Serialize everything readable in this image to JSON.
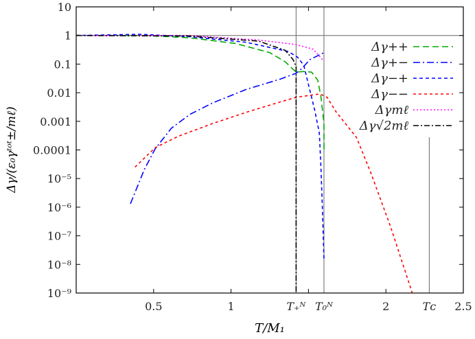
{
  "chart_data": {
    "type": "line",
    "xlabel": "T/M₁",
    "ylabel": "Δγ/(ε₀γᵗᵒᵗ±/mℓ)",
    "xlim": [
      0,
      2.5
    ],
    "ylim": [
      1e-09,
      10
    ],
    "yscale": "log",
    "grid": false,
    "legend_position": "top-right",
    "x_ticks": [
      {
        "value": 0.5,
        "label": "0.5"
      },
      {
        "value": 1,
        "label": "1"
      },
      {
        "value": 1.42,
        "label": "T₊ᴺ"
      },
      {
        "value": 1.6,
        "label": "T₀ᴺ"
      },
      {
        "value": 2,
        "label": "2"
      },
      {
        "value": 2.28,
        "label": "Tᴄ"
      },
      {
        "value": 2.5,
        "label": "2.5"
      }
    ],
    "y_ticks": [
      {
        "value": 10,
        "label": "10"
      },
      {
        "value": 1,
        "label": "1"
      },
      {
        "value": 0.1,
        "label": "0.1"
      },
      {
        "value": 0.01,
        "label": "0.01"
      },
      {
        "value": 0.001,
        "label": "0.001"
      },
      {
        "value": 0.0001,
        "label": "0.0001"
      },
      {
        "value": 1e-05,
        "label": "10⁻⁵"
      },
      {
        "value": 1e-06,
        "label": "10⁻⁶"
      },
      {
        "value": 1e-07,
        "label": "10⁻⁷"
      },
      {
        "value": 1e-08,
        "label": "10⁻⁸"
      },
      {
        "value": 1e-09,
        "label": "10⁻⁹"
      }
    ],
    "reference_lines": {
      "vertical": [
        1.42,
        1.6,
        2.28
      ],
      "horizontal": [
        1
      ]
    },
    "series": [
      {
        "name": "Δγ++",
        "color": "#00aa00",
        "dash": "9,5",
        "x": [
          0,
          0.44,
          0.73,
          1.03,
          1.25,
          1.35,
          1.42,
          1.47,
          1.52,
          1.56,
          1.58,
          1.6,
          1.6
        ],
        "log10_y": [
          0,
          0,
          -0.08,
          -0.28,
          -0.6,
          -0.92,
          -1.28,
          -1.26,
          -1.28,
          -1.56,
          -2.12,
          -3.08,
          -4.0
        ]
      },
      {
        "name": "Δγ+−",
        "color": "#0000ff",
        "dash": "10,4,2,4",
        "x": [
          0.35,
          0.44,
          0.51,
          0.615,
          0.733,
          0.88,
          1.1,
          1.32,
          1.42,
          1.456,
          1.51,
          1.6
        ],
        "log10_y": [
          -5.88,
          -4.68,
          -3.96,
          -3.24,
          -2.76,
          -2.36,
          -1.88,
          -1.52,
          -1.32,
          -1.16,
          -0.84,
          -0.6
        ]
      },
      {
        "name": "Δγ−+",
        "color": "#0000ff",
        "dash": "5,4",
        "x": [
          0,
          0.41,
          0.73,
          1.1,
          1.37,
          1.43,
          1.47,
          1.5,
          1.54,
          1.57,
          1.58,
          1.59,
          1.6
        ],
        "log10_y": [
          0,
          0.04,
          -0.04,
          -0.24,
          -0.56,
          -0.76,
          -1.04,
          -1.72,
          -2.6,
          -3.4,
          -4.52,
          -6.04,
          -7.83
        ]
      },
      {
        "name": "Δγ−−",
        "color": "#ff0000",
        "dash": "4,4",
        "x": [
          0.38,
          0.51,
          0.66,
          0.88,
          1.1,
          1.32,
          1.42,
          1.574,
          1.62,
          1.68,
          1.81,
          1.9,
          2.03,
          2.17
        ],
        "log10_y": [
          -4.6,
          -3.92,
          -3.52,
          -3.08,
          -2.68,
          -2.32,
          -2.16,
          -2.04,
          -2.16,
          -2.68,
          -3.56,
          -4.76,
          -6.68,
          -9
        ]
      },
      {
        "name": "Δγmℓ",
        "color": "#ff00ff",
        "dash": "2,3",
        "x": [
          0,
          0.73,
          1.18,
          1.42,
          1.53,
          1.59
        ],
        "log10_y": [
          0,
          0,
          -0.16,
          -0.32,
          -0.48,
          -0.84
        ]
      },
      {
        "name": "Δγ√2mℓ",
        "color": "#000000",
        "dash": "8,3,2,3",
        "x": [
          0,
          0.73,
          1.18,
          1.35,
          1.4,
          1.42,
          1.42
        ],
        "log10_y": [
          0,
          -0.02,
          -0.2,
          -0.52,
          -0.84,
          -1.08,
          -9
        ]
      }
    ]
  }
}
